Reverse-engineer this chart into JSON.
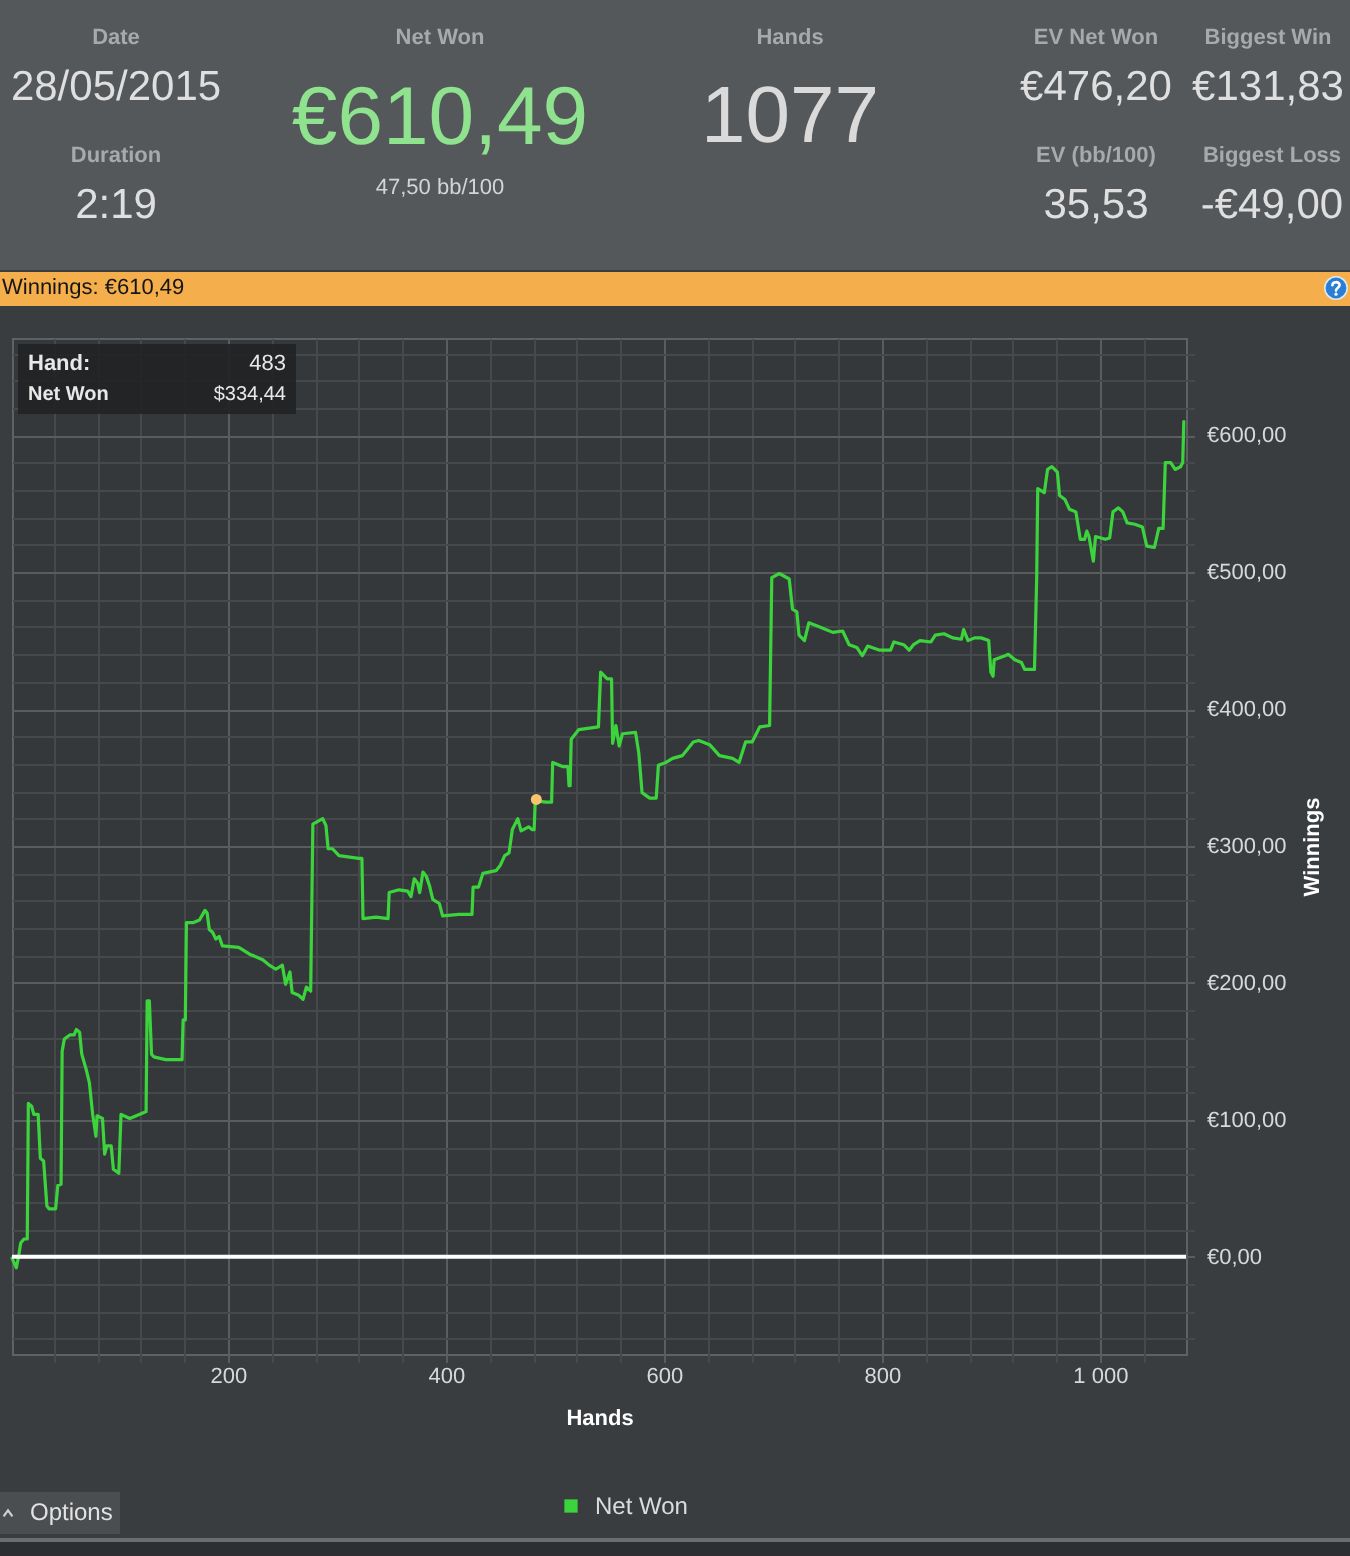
{
  "chart_data": [
    {
      "type": "other",
      "annotations": [
        "Date",
        "28/05/2015",
        "Duration",
        "2:19",
        "Net Won",
        "€610,49",
        "47,50 bb/100",
        "Hands",
        "1077",
        "EV Net Won",
        "€476,20",
        "EV (bb/100)",
        "35,53",
        "Biggest Win",
        "€131,83",
        "Biggest Loss",
        "-€49,00"
      ]
    },
    {
      "type": "line",
      "title": "Winnings: €610,49",
      "xlabel": "Hands",
      "ylabel": "Winnings",
      "x": [
        2,
        6,
        8,
        10,
        13,
        16,
        17,
        20,
        22,
        26,
        28,
        31,
        34,
        36,
        42,
        44,
        47,
        48,
        50,
        55,
        59,
        61,
        64,
        66,
        70,
        73,
        76,
        79,
        80,
        85,
        87,
        89,
        93,
        95,
        100,
        102,
        110,
        116,
        122,
        125,
        126,
        128,
        130,
        132,
        143,
        158,
        159,
        161,
        162,
        168,
        174,
        179,
        181,
        183,
        186,
        189,
        192,
        195,
        210,
        220,
        232,
        238,
        244,
        250,
        253,
        257,
        259,
        265,
        269,
        272,
        276,
        278,
        287,
        290,
        292,
        296,
        302,
        320,
        323,
        324,
        336,
        347,
        348,
        357,
        365,
        368,
        371,
        374,
        376,
        379,
        382,
        385,
        388,
        394,
        397,
        412,
        424,
        425,
        430,
        434,
        446,
        450,
        454,
        458,
        461,
        466,
        469,
        476,
        479,
        481,
        482,
        492,
        497,
        498,
        507,
        512,
        513,
        514,
        515,
        522,
        540,
        542,
        548,
        552,
        553,
        556,
        559,
        562,
        574,
        577,
        580,
        587,
        593,
        595,
        602,
        608,
        617,
        623,
        627,
        632,
        642,
        651,
        663,
        669,
        675,
        681,
        688,
        697,
        699,
        706,
        715,
        718,
        722,
        724,
        729,
        733,
        743,
        755,
        764,
        770,
        777,
        782,
        787,
        798,
        808,
        811,
        820,
        825,
        829,
        835,
        845,
        849,
        857,
        865,
        873,
        875,
        879,
        885,
        891,
        898,
        900,
        902,
        903,
        913,
        916,
        922,
        928,
        931,
        940,
        942,
        943,
        949,
        952,
        956,
        961,
        963,
        968,
        972,
        978,
        982,
        986,
        988,
        990,
        994,
        996,
        1005,
        1009,
        1012,
        1017,
        1021,
        1025,
        1032,
        1039,
        1043,
        1050,
        1054,
        1058,
        1060,
        1065,
        1069,
        1074,
        1076,
        1077
      ],
      "series": [
        {
          "name": "Net Won",
          "color": "#3cd43c",
          "values": [
            -1,
            -8,
            0,
            10,
            13,
            13,
            112,
            110,
            104,
            104,
            72,
            70,
            37,
            35,
            35,
            52,
            53,
            150,
            159,
            162,
            162,
            166,
            164,
            148,
            137,
            127,
            104,
            88,
            103,
            101,
            75,
            81,
            81,
            64,
            61,
            104,
            101,
            103,
            105,
            106,
            187,
            187,
            148,
            146,
            144,
            144,
            173,
            173,
            244,
            244,
            246,
            253,
            251,
            239,
            237,
            232,
            234,
            227,
            226,
            221,
            217,
            213,
            210,
            213,
            199,
            208,
            193,
            191,
            188,
            197,
            194,
            316,
            320,
            315,
            298,
            298,
            293,
            291,
            291,
            247,
            248,
            247,
            266,
            268,
            267,
            263,
            276,
            273,
            266,
            281,
            278,
            271,
            261,
            258,
            249,
            250,
            250,
            270,
            270,
            280,
            282,
            286,
            293,
            295,
            312,
            320,
            311,
            314,
            312,
            312,
            333,
            332,
            332,
            361,
            358,
            358,
            344,
            344,
            378,
            385,
            387,
            427,
            422,
            422,
            375,
            388,
            373,
            382,
            383,
            368,
            339,
            335,
            335,
            359,
            361,
            364,
            366,
            372,
            376,
            377,
            374,
            366,
            364,
            361,
            376,
            376,
            387,
            388,
            496,
            499,
            495,
            473,
            471,
            454,
            450,
            463,
            460,
            456,
            457,
            447,
            445,
            439,
            446,
            443,
            443,
            449,
            447,
            443,
            447,
            450,
            449,
            454,
            455,
            452,
            451,
            458,
            450,
            452,
            452,
            450,
            427,
            424,
            436,
            439,
            440,
            436,
            434,
            429,
            429,
            495,
            561,
            558,
            575,
            577,
            573,
            556,
            553,
            546,
            544,
            524,
            524,
            530,
            526,
            508,
            526,
            524,
            525,
            544,
            547,
            544,
            536,
            535,
            533,
            519,
            518,
            532,
            532,
            580,
            580,
            575,
            577,
            580,
            610
          ]
        },
        {
          "type": "scatter",
          "color": "#f7c46c",
          "x": [
            483
          ],
          "values": [
            334
          ]
        }
      ],
      "xlim": [
        2,
        1079
      ],
      "ylim": [
        -71,
        671
      ],
      "xticks": [
        {
          "value": 40,
          "label": null
        },
        {
          "value": 80,
          "label": null
        },
        {
          "value": 120,
          "label": null
        },
        {
          "value": 160,
          "label": null
        },
        200,
        {
          "value": 240,
          "label": null
        },
        {
          "value": 280,
          "label": null
        },
        {
          "value": 320,
          "label": null
        },
        {
          "value": 360,
          "label": null
        },
        400,
        {
          "value": 440,
          "label": null
        },
        {
          "value": 480,
          "label": null
        },
        {
          "value": 520,
          "label": null
        },
        {
          "value": 560,
          "label": null
        },
        600,
        {
          "value": 640,
          "label": null
        },
        {
          "value": 680,
          "label": null
        },
        {
          "value": 720,
          "label": null
        },
        {
          "value": 760,
          "label": null
        },
        800,
        {
          "value": 840,
          "label": null
        },
        {
          "value": 880,
          "label": null
        },
        {
          "value": 920,
          "label": null
        },
        {
          "value": 960,
          "label": null
        },
        {
          "value": 1000,
          "label": "1 000"
        },
        {
          "value": 1040,
          "label": null
        }
      ],
      "yticks": [
        {
          "value": -60,
          "label": null
        },
        {
          "value": -40,
          "label": null
        },
        {
          "value": -20,
          "label": null
        },
        {
          "value": 0,
          "label": "€0,00"
        },
        {
          "value": 20,
          "label": null
        },
        {
          "value": 40,
          "label": null
        },
        {
          "value": 60,
          "label": null
        },
        {
          "value": 80,
          "label": null
        },
        {
          "value": 100,
          "label": "€100,00"
        },
        {
          "value": 120,
          "label": null
        },
        {
          "value": 140,
          "label": null
        },
        {
          "value": 160,
          "label": null
        },
        {
          "value": 180,
          "label": null
        },
        {
          "value": 200,
          "label": "€200,00"
        },
        {
          "value": 220,
          "label": null
        },
        {
          "value": 240,
          "label": null
        },
        {
          "value": 260,
          "label": null
        },
        {
          "value": 280,
          "label": null
        },
        {
          "value": 300,
          "label": "€300,00"
        },
        {
          "value": 320,
          "label": null
        },
        {
          "value": 340,
          "label": null
        },
        {
          "value": 360,
          "label": null
        },
        {
          "value": 380,
          "label": null
        },
        {
          "value": 400,
          "label": "€400,00"
        },
        {
          "value": 420,
          "label": null
        },
        {
          "value": 440,
          "label": null
        },
        {
          "value": 460,
          "label": null
        },
        {
          "value": 480,
          "label": null
        },
        {
          "value": 500,
          "label": "€500,00"
        },
        {
          "value": 520,
          "label": null
        },
        {
          "value": 540,
          "label": null
        },
        {
          "value": 560,
          "label": null
        },
        {
          "value": 580,
          "label": null
        },
        {
          "value": 600,
          "label": "€600,00"
        },
        {
          "value": 620,
          "label": null
        },
        {
          "value": 640,
          "label": null
        },
        {
          "value": 660,
          "label": null
        }
      ],
      "grid": true,
      "legend": "bottom",
      "ref_lines": [
        {
          "axis": "y",
          "value": 0,
          "color": "#ffffff"
        }
      ],
      "annotations": [
        "Hand:",
        "483",
        "Net Won",
        "$334,44",
        "Options"
      ]
    }
  ]
}
